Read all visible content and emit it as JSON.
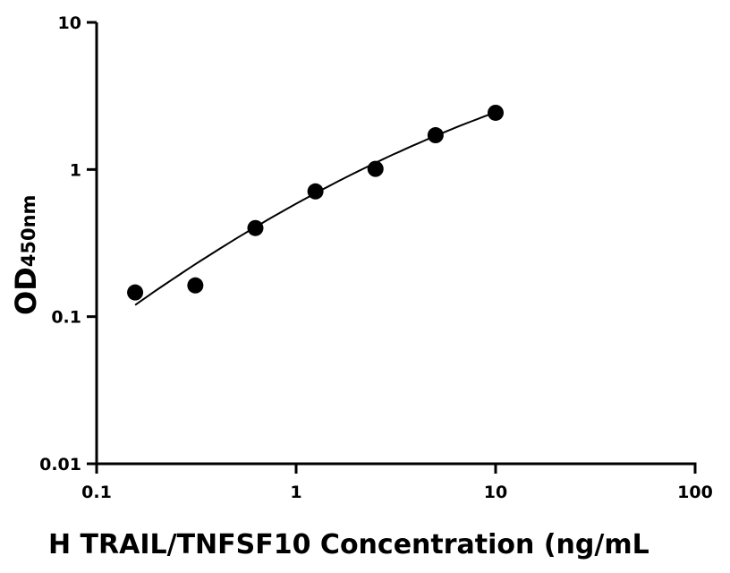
{
  "chart_data": {
    "type": "scatter",
    "xlabel": "H TRAIL/TNFSF10 Concentration (ng/mL",
    "ylabel": "OD",
    "ylabel_subscript": "450nm",
    "x_scale": "log",
    "y_scale": "log",
    "xlim": [
      0.1,
      100
    ],
    "ylim": [
      0.01,
      10
    ],
    "x_ticks": [
      "0.1",
      "1",
      "10",
      "100"
    ],
    "y_ticks": [
      "0.01",
      "0.1",
      "1",
      "10"
    ],
    "grid": false,
    "legend": "none",
    "marker_color": "#000000",
    "points": {
      "x": [
        0.156,
        0.3125,
        0.625,
        1.25,
        2.5,
        5,
        10
      ],
      "y": [
        0.146,
        0.163,
        0.4,
        0.71,
        1.01,
        1.71,
        2.43
      ]
    },
    "fit_curve": {
      "x": [
        0.156,
        1.25,
        10
      ],
      "y": [
        0.12,
        0.69,
        2.45
      ]
    }
  }
}
